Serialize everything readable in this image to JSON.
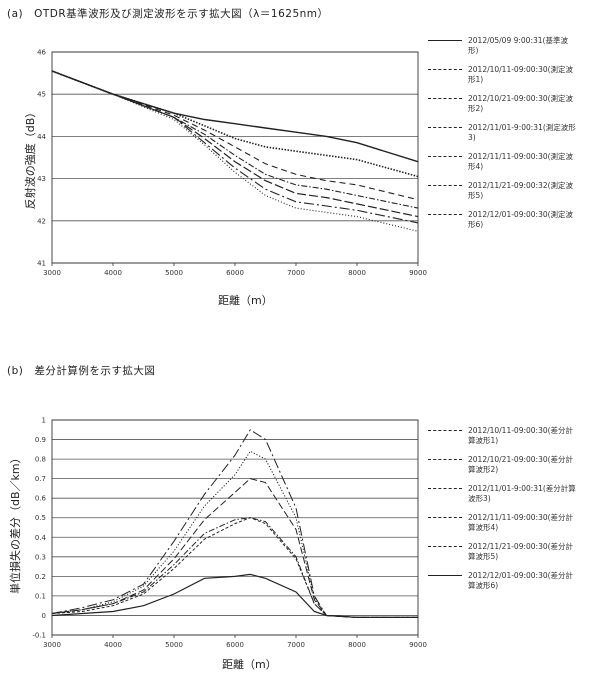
{
  "chart_data": [
    {
      "type": "line",
      "title": "(a)　OTDR基準波形及び測定波形を示す拡大図（λ＝1625nm）",
      "xlabel": "距離（m）",
      "ylabel": "反射波の強度（dB）",
      "xlim": [
        3000,
        9000
      ],
      "ylim": [
        41,
        46
      ],
      "xticks": [
        "3000",
        "4000",
        "5000",
        "6000",
        "7000",
        "8000",
        "9000"
      ],
      "yticks": [
        "41",
        "42",
        "43",
        "44",
        "45",
        "46"
      ],
      "grid": "horizontal major lines",
      "legend_position": "right",
      "x": [
        3000,
        4000,
        5000,
        5500,
        6000,
        6500,
        7000,
        7500,
        8000,
        9000
      ],
      "series": [
        {
          "name": "2012/05/09  9:00:31(基準波形)",
          "dash": "solid",
          "width": 1.4,
          "values": [
            45.55,
            45.0,
            44.55,
            44.4,
            44.3,
            44.2,
            44.1,
            44.0,
            43.85,
            43.4
          ]
        },
        {
          "name": "2012/10/11-09:00:30(測定波形1)",
          "dash": "1.5 1.5",
          "width": 1.6,
          "values": [
            45.55,
            45.0,
            44.55,
            44.25,
            43.95,
            43.75,
            43.65,
            43.55,
            43.45,
            43.05
          ]
        },
        {
          "name": "2012/10/21-09:00:30(測定波形2)",
          "dash": "6 4",
          "width": 1.1,
          "values": [
            45.55,
            45.0,
            44.5,
            44.15,
            43.75,
            43.35,
            43.1,
            42.95,
            42.85,
            42.5
          ]
        },
        {
          "name": "2012/11/01-9:00:31(測定波形3)",
          "dash": "6 2 1.5 2",
          "width": 1.1,
          "values": [
            45.55,
            45.0,
            44.45,
            44.05,
            43.55,
            43.1,
            42.85,
            42.75,
            42.6,
            42.3
          ]
        },
        {
          "name": "2012/11/11-09:00:30(測定波形4)",
          "dash": "9 3",
          "width": 1.2,
          "values": [
            45.55,
            45.0,
            44.45,
            43.95,
            43.4,
            42.95,
            42.65,
            42.55,
            42.4,
            42.1
          ]
        },
        {
          "name": "2012/11/21-09:00:32(測定波形5)",
          "dash": "10 3 2 3",
          "width": 1.1,
          "values": [
            45.55,
            45.0,
            44.45,
            43.85,
            43.25,
            42.75,
            42.45,
            42.35,
            42.25,
            41.95
          ]
        },
        {
          "name": "2012/12/01-09:00:30(測定波形6)",
          "dash": "1 2",
          "width": 1.1,
          "values": [
            45.55,
            45.0,
            44.4,
            43.8,
            43.15,
            42.6,
            42.3,
            42.2,
            42.1,
            41.75
          ]
        }
      ]
    },
    {
      "type": "line",
      "title": "(b)　差分計算例を示す拡大図",
      "xlabel": "距離（m）",
      "ylabel": "単位損失の差分（dB／km）",
      "xlim": [
        3000,
        9000
      ],
      "ylim": [
        -0.1,
        1
      ],
      "xticks": [
        "3000",
        "4000",
        "5000",
        "6000",
        "7000",
        "8000",
        "9000"
      ],
      "yticks": [
        "-0.1",
        "0",
        "0.1",
        "0.2",
        "0.3",
        "0.4",
        "0.5",
        "0.6",
        "0.7",
        "0.8",
        "0.9",
        "1"
      ],
      "grid": "horizontal major lines",
      "legend_position": "right",
      "x": [
        3000,
        3500,
        4000,
        4500,
        5000,
        5500,
        6000,
        6250,
        6500,
        7000,
        7300,
        7500,
        8000,
        9000
      ],
      "series": [
        {
          "name": "2012/10/11-09:00:30(差分計算波形1)",
          "dash": "6 2 1.5 2",
          "width": 1.0,
          "values": [
            0.01,
            0.03,
            0.06,
            0.12,
            0.26,
            0.42,
            0.49,
            0.5,
            0.48,
            0.3,
            0.06,
            0.0,
            -0.01,
            -0.01
          ]
        },
        {
          "name": "2012/10/21-09:00:30(差分計算波形2)",
          "dash": "10 3 2 3",
          "width": 1.0,
          "values": [
            0.01,
            0.04,
            0.08,
            0.16,
            0.38,
            0.62,
            0.82,
            0.95,
            0.9,
            0.55,
            0.1,
            0.0,
            -0.01,
            -0.01
          ]
        },
        {
          "name": "2012/11/01-9:00:31(差分計算波形3)",
          "dash": "1.2 1.8",
          "width": 1.0,
          "values": [
            0.01,
            0.03,
            0.07,
            0.15,
            0.33,
            0.56,
            0.72,
            0.84,
            0.8,
            0.5,
            0.09,
            0.0,
            -0.01,
            -0.01
          ]
        },
        {
          "name": "2012/11/11-09:00:30(差分計算波形4)",
          "dash": "7 3",
          "width": 1.0,
          "values": [
            0.01,
            0.03,
            0.06,
            0.13,
            0.29,
            0.49,
            0.63,
            0.7,
            0.68,
            0.44,
            0.08,
            0.0,
            -0.01,
            -0.01
          ]
        },
        {
          "name": "2012/11/21-09:00:30(差分計算波形5)",
          "dash": "3 2",
          "width": 1.0,
          "values": [
            0.01,
            0.02,
            0.05,
            0.11,
            0.24,
            0.39,
            0.47,
            0.5,
            0.47,
            0.29,
            0.06,
            0.0,
            -0.01,
            -0.01
          ]
        },
        {
          "name": "2012/12/01-09:00:30(差分計算波形6)",
          "dash": "solid",
          "width": 1.2,
          "values": [
            0.0,
            0.01,
            0.02,
            0.05,
            0.11,
            0.19,
            0.2,
            0.21,
            0.19,
            0.12,
            0.02,
            0.0,
            -0.01,
            -0.01
          ]
        }
      ]
    }
  ]
}
